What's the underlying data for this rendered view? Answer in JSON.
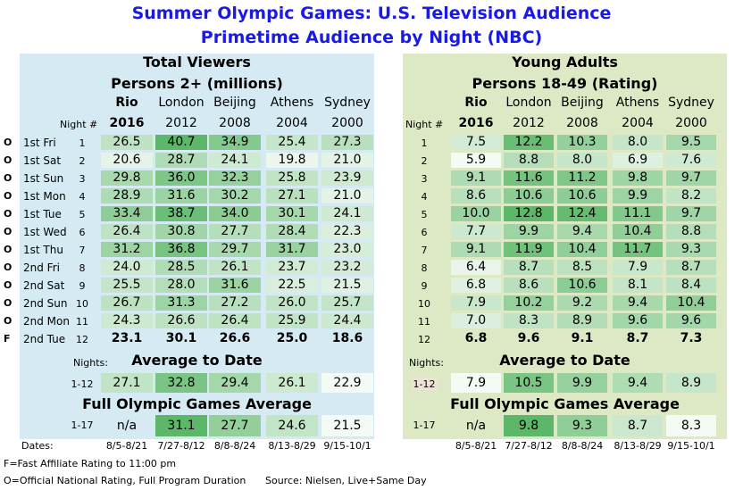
{
  "title1": "Summer Olympic Games: U.S. Television Audience",
  "title2": "Primetime Audience by Night (NBC)",
  "left": {
    "heading1": "Total Viewers",
    "heading2": "Persons 2+ (millions)",
    "cities": [
      "Rio",
      "London",
      "Beijing",
      "Athens",
      "Sydney"
    ],
    "years": [
      "2016",
      "2012",
      "2008",
      "2004",
      "2000"
    ],
    "night_label": "Night #",
    "rows": [
      {
        "flag": "O",
        "label": "1st Fri",
        "n": "1",
        "v": [
          "26.5",
          "40.7",
          "34.9",
          "25.4",
          "27.3"
        ]
      },
      {
        "flag": "O",
        "label": "1st Sat",
        "n": "2",
        "v": [
          "20.6",
          "28.7",
          "24.1",
          "19.8",
          "21.0"
        ]
      },
      {
        "flag": "O",
        "label": "1st Sun",
        "n": "3",
        "v": [
          "29.8",
          "36.0",
          "32.3",
          "25.8",
          "23.9"
        ]
      },
      {
        "flag": "O",
        "label": "1st Mon",
        "n": "4",
        "v": [
          "28.9",
          "31.6",
          "30.2",
          "27.1",
          "21.0"
        ]
      },
      {
        "flag": "O",
        "label": "1st Tue",
        "n": "5",
        "v": [
          "33.4",
          "38.7",
          "34.0",
          "30.1",
          "24.1"
        ]
      },
      {
        "flag": "O",
        "label": "1st Wed",
        "n": "6",
        "v": [
          "26.4",
          "30.8",
          "27.7",
          "28.4",
          "22.3"
        ]
      },
      {
        "flag": "O",
        "label": "1st Thu",
        "n": "7",
        "v": [
          "31.2",
          "36.8",
          "29.7",
          "31.7",
          "23.0"
        ]
      },
      {
        "flag": "O",
        "label": "2nd Fri",
        "n": "8",
        "v": [
          "24.0",
          "28.5",
          "26.1",
          "23.7",
          "23.2"
        ]
      },
      {
        "flag": "O",
        "label": "2nd Sat",
        "n": "9",
        "v": [
          "25.5",
          "28.0",
          "31.6",
          "22.5",
          "21.5"
        ]
      },
      {
        "flag": "O",
        "label": "2nd Sun",
        "n": "10",
        "v": [
          "26.7",
          "31.3",
          "27.2",
          "26.0",
          "25.7"
        ]
      },
      {
        "flag": "O",
        "label": "2nd Mon",
        "n": "11",
        "v": [
          "24.3",
          "26.6",
          "26.4",
          "25.9",
          "24.4"
        ]
      },
      {
        "flag": "F",
        "label": "2nd Tue",
        "n": "12",
        "v": [
          "23.1",
          "30.1",
          "26.6",
          "25.0",
          "18.6"
        ],
        "bold": true
      }
    ],
    "nights_label": "Nights:",
    "avg_title": "Average to Date",
    "avg_range": "1-12",
    "avg": [
      "27.1",
      "32.8",
      "29.4",
      "26.1",
      "22.9"
    ],
    "full_title": "Full Olympic Games Average",
    "full_range": "1-17",
    "full": [
      "n/a",
      "31.1",
      "27.7",
      "24.6",
      "21.5"
    ],
    "dates_label": "Dates:",
    "dates": [
      "8/5-8/21",
      "7/27-8/12",
      "8/8-8/24",
      "8/13-8/29",
      "9/15-10/1"
    ]
  },
  "right": {
    "heading1": "Young Adults",
    "heading2": "Persons 18-49 (Rating)",
    "cities": [
      "Rio",
      "London",
      "Beijing",
      "Athens",
      "Sydney"
    ],
    "years": [
      "2016",
      "2012",
      "2008",
      "2004",
      "2000"
    ],
    "night_label": "Night #",
    "rows": [
      {
        "n": "1",
        "v": [
          "7.5",
          "12.2",
          "10.3",
          "8.0",
          "9.5"
        ]
      },
      {
        "n": "2",
        "v": [
          "5.9",
          "8.8",
          "8.0",
          "6.9",
          "7.6"
        ]
      },
      {
        "n": "3",
        "v": [
          "9.1",
          "11.6",
          "11.2",
          "9.8",
          "9.7"
        ]
      },
      {
        "n": "4",
        "v": [
          "8.6",
          "10.6",
          "10.6",
          "9.9",
          "8.2"
        ]
      },
      {
        "n": "5",
        "v": [
          "10.0",
          "12.8",
          "12.4",
          "11.1",
          "9.7"
        ]
      },
      {
        "n": "6",
        "v": [
          "7.7",
          "9.9",
          "9.4",
          "10.4",
          "8.8"
        ]
      },
      {
        "n": "7",
        "v": [
          "9.1",
          "11.9",
          "10.4",
          "11.7",
          "9.3"
        ]
      },
      {
        "n": "8",
        "v": [
          "6.4",
          "8.7",
          "8.5",
          "7.9",
          "8.7"
        ]
      },
      {
        "n": "9",
        "v": [
          "6.8",
          "8.6",
          "10.6",
          "8.1",
          "8.4"
        ]
      },
      {
        "n": "10",
        "v": [
          "7.9",
          "10.2",
          "9.2",
          "9.4",
          "10.4"
        ]
      },
      {
        "n": "11",
        "v": [
          "7.0",
          "8.3",
          "8.9",
          "9.6",
          "9.6"
        ]
      },
      {
        "n": "12",
        "v": [
          "6.8",
          "9.6",
          "9.1",
          "8.7",
          "7.3"
        ],
        "bold": true
      }
    ],
    "nights_label": "Nights:",
    "avg_title": "Average to Date",
    "avg_range": "1-12",
    "avg": [
      "7.9",
      "10.5",
      "9.9",
      "9.4",
      "8.9"
    ],
    "full_title": "Full Olympic Games Average",
    "full_range": "1-17",
    "full": [
      "n/a",
      "9.8",
      "9.3",
      "8.7",
      "8.3"
    ],
    "dates": [
      "8/5-8/21",
      "7/27-8/12",
      "8/8-8/24",
      "8/13-8/29",
      "9/15-10/1"
    ]
  },
  "footnotes": {
    "f": "F=Fast Affiliate Rating to 11:00 pm",
    "o": "O=Official National Rating, Full Program Duration",
    "source": "Source: Nielsen, Live+Same Day"
  }
}
